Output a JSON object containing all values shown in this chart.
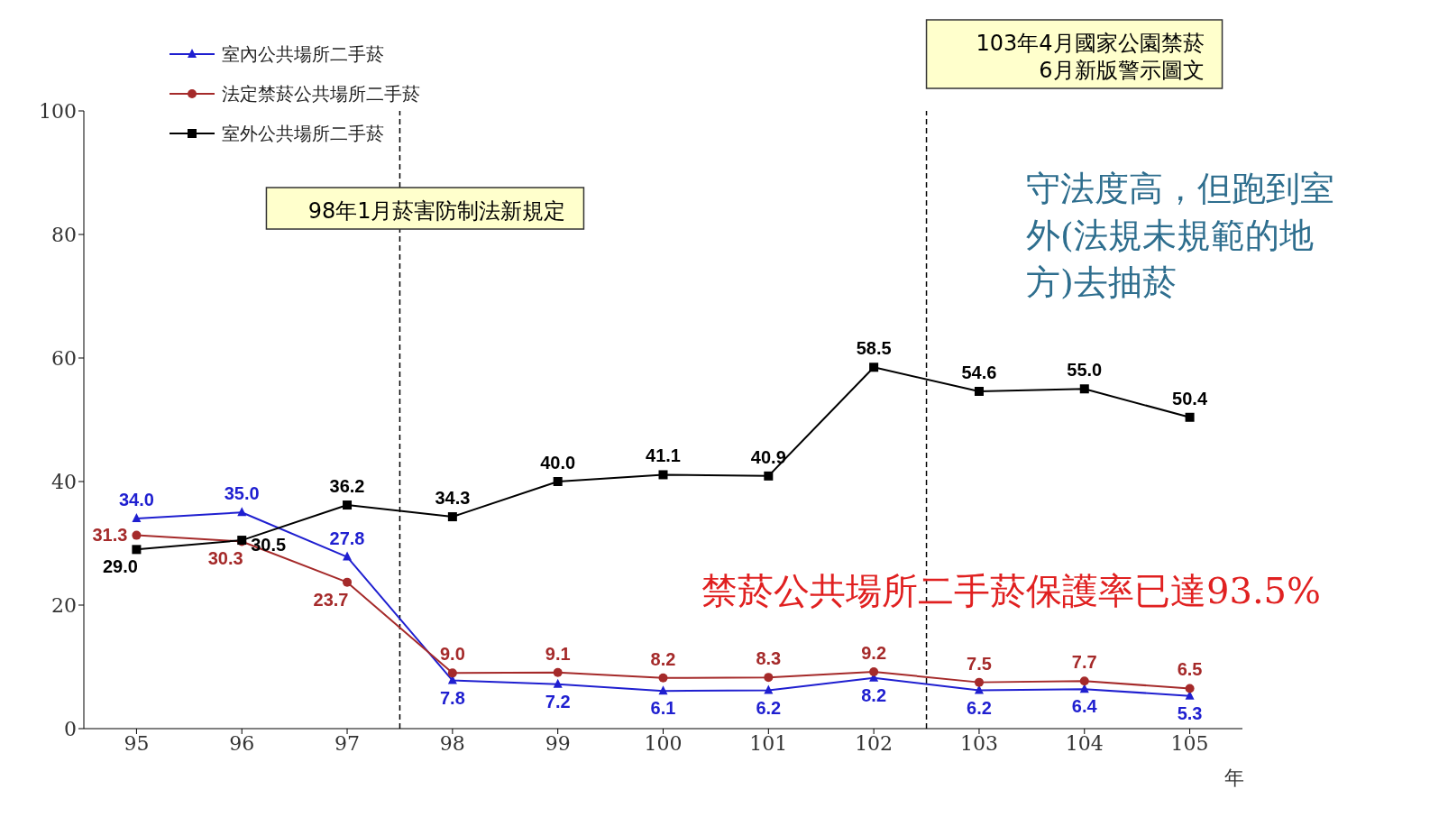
{
  "chart_data": {
    "type": "line",
    "x": [
      95,
      96,
      97,
      98,
      99,
      100,
      101,
      102,
      103,
      104,
      105
    ],
    "xlim": [
      94.5,
      105.5
    ],
    "xticks": [
      95,
      96,
      97,
      98,
      99,
      100,
      101,
      102,
      103,
      104,
      105
    ],
    "ylim": [
      0,
      100
    ],
    "yticks": [
      0,
      20,
      40,
      60,
      80,
      100
    ],
    "xlabel": "年",
    "series": [
      {
        "name": "室內公共場所二手菸",
        "color": "#1f1fd0",
        "marker": "triangle",
        "values": [
          34.0,
          35.0,
          27.8,
          7.8,
          7.2,
          6.1,
          6.2,
          8.2,
          6.2,
          6.4,
          5.3
        ],
        "value_labels": [
          "34.0",
          "35.0",
          "27.8",
          "7.8",
          "7.2",
          "6.1",
          "6.2",
          "8.2",
          "6.2",
          "6.4",
          "5.3"
        ]
      },
      {
        "name": "法定禁菸公共場所二手菸",
        "color": "#a52a2a",
        "marker": "circle",
        "values": [
          31.3,
          30.3,
          23.7,
          9.0,
          9.1,
          8.2,
          8.3,
          9.2,
          7.5,
          7.7,
          6.5
        ],
        "value_labels": [
          "31.3",
          "30.3",
          "23.7",
          "9.0",
          "9.1",
          "8.2",
          "8.3",
          "9.2",
          "7.5",
          "7.7",
          "6.5"
        ]
      },
      {
        "name": "室外公共場所二手菸",
        "color": "#000000",
        "marker": "square",
        "values": [
          29.0,
          30.5,
          36.2,
          34.3,
          40.0,
          41.1,
          40.9,
          58.5,
          54.6,
          55.0,
          50.4
        ],
        "value_labels": [
          "29.0",
          "30.5",
          "36.2",
          "34.3",
          "40.0",
          "41.1",
          "40.9",
          "58.5",
          "54.6",
          "55.0",
          "50.4"
        ]
      }
    ],
    "legend": "top left",
    "grid": false,
    "line_style": "solid",
    "ref_lines": [
      {
        "axis": "x",
        "value": 97.5,
        "label": "98年1月菸害防制法新規定",
        "line_style": "dashed",
        "color": "#000000"
      },
      {
        "axis": "x",
        "value": 102.5,
        "label": "103年4月國家公園禁菸\n6月新版警示圖文",
        "line_style": "dashed",
        "color": "#000000"
      }
    ],
    "annotations": [
      "守法度高，但跑到室外(法規未規範的地方)去抽菸",
      "禁菸公共場所二手菸保護率已達93.5%"
    ]
  }
}
